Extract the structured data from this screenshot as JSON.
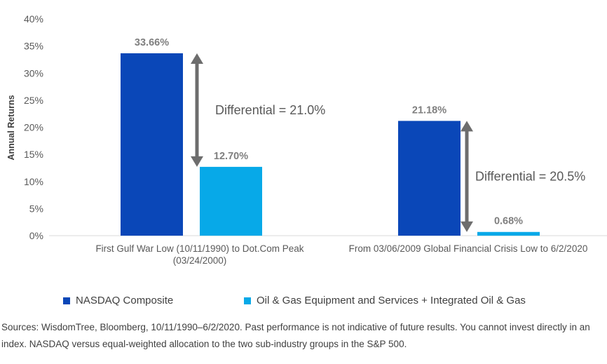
{
  "chart_data": {
    "type": "bar",
    "ylabel": "Annual Returns",
    "ylim": [
      0,
      40
    ],
    "yticks": [
      0,
      5,
      10,
      15,
      20,
      25,
      30,
      35,
      40
    ],
    "ytick_labels": [
      "0%",
      "5%",
      "10%",
      "15%",
      "20%",
      "25%",
      "30%",
      "35%",
      "40%"
    ],
    "grid": false,
    "categories": [
      [
        "First Gulf War Low (10/11/1990) to Dot.Com Peak",
        "(03/24/2000)"
      ],
      [
        "From 03/06/2009 Global Financial Crisis Low to 6/2/2020"
      ]
    ],
    "series": [
      {
        "name": "NASDAQ Composite",
        "color": "#0a47b8",
        "values": [
          33.66,
          21.18
        ],
        "labels": [
          "33.66%",
          "21.18%"
        ]
      },
      {
        "name": "Oil & Gas Equipment and Services + Integrated Oil & Gas",
        "color": "#07a9e8",
        "values": [
          12.7,
          0.68
        ],
        "labels": [
          "12.70%",
          "0.68%"
        ]
      }
    ],
    "annotations": [
      {
        "text": "Differential = 21.0%",
        "from": 33.66,
        "to": 12.7,
        "category": 0
      },
      {
        "text": "Differential = 20.5%",
        "from": 21.18,
        "to": 0.68,
        "category": 1
      }
    ],
    "legend_position": "bottom"
  },
  "sources_text": "Sources: WisdomTree, Bloomberg, 10/11/1990–6/2/2020. Past performance is not indicative of future results. You cannot invest directly in an index. NASDAQ versus equal-weighted allocation to the two sub-industry groups in the S&P 500."
}
